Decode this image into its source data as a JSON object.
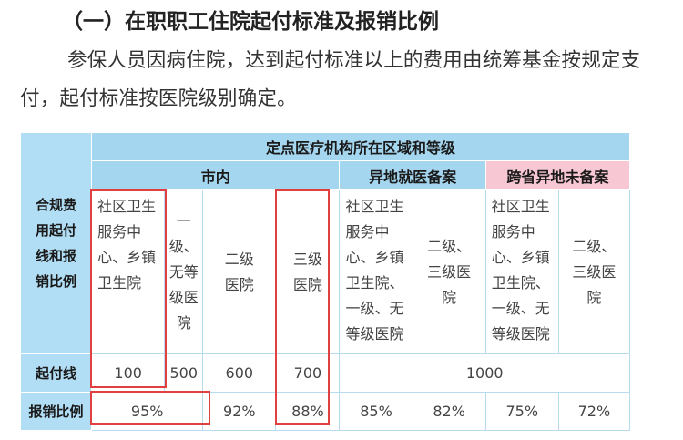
{
  "heading": "（一）在职职工住院起付标准及报销比例",
  "paragraph": "参保人员因病住院，达到起付标准以上的费用由统筹基金按规定支付，起付标准按医院级别确定。",
  "table": {
    "side_label": "合规费用起付线和报销比例",
    "top_header": "定点医疗机构所在区域和等级",
    "group_local": "市内",
    "group_other_filed": "异地就医备案",
    "group_other_unfiled": "跨省异地未备案",
    "col1": "社区卫生服务中心、乡镇卫生院",
    "col2": "一级、无等级医院",
    "col3": "二级医院",
    "col4": "三级医院",
    "col5": "社区卫生服务中心、乡镇卫生院、一级、无等级医院",
    "col6": "二级、三级医院",
    "col7": "社区卫生服务中心、乡镇卫生院、一级、无等级医院",
    "col8": "二级、三级医院",
    "row_threshold_label": "起付线",
    "t1": "100",
    "t2": "500",
    "t3": "600",
    "t4": "700",
    "t5": "1000",
    "row_rate_label": "报销比例",
    "r12": "95%",
    "r3": "92%",
    "r4": "88%",
    "r5": "85%",
    "r6": "82%",
    "r7": "75%",
    "r8": "72%"
  },
  "colors": {
    "header_blue": "#a5d6ef",
    "header_pink": "#f8c7d4",
    "highlight_red": "#e0403f"
  }
}
